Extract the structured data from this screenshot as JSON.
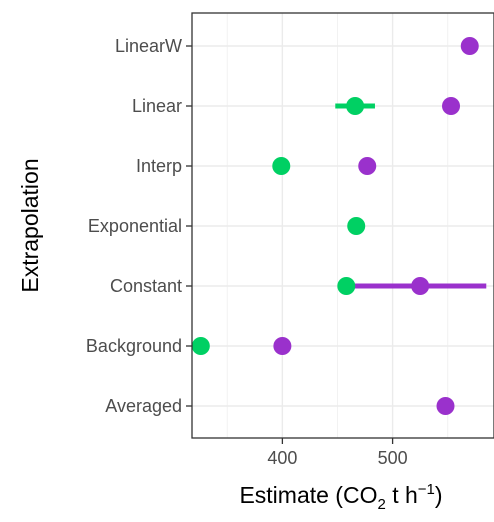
{
  "chart_data": {
    "type": "scatter",
    "orientation": "horizontal",
    "categories": [
      "Averaged",
      "Background",
      "Constant",
      "Exponential",
      "Interp",
      "Linear",
      "LinearW"
    ],
    "xticks": [
      400,
      500
    ],
    "xlim": [
      318,
      592
    ],
    "ylabel": "Extrapolation",
    "xlabel": {
      "prefix": "Estimate (CO",
      "sub": "2",
      "middle": " t h",
      "sup": "−1",
      "suffix": ")"
    },
    "grid": true,
    "legend": "none",
    "series": [
      {
        "color": "#00d063",
        "points": [
          {
            "category": "Averaged",
            "x": null
          },
          {
            "category": "Background",
            "x": 326
          },
          {
            "category": "Constant",
            "x": 458
          },
          {
            "category": "Exponential",
            "x": 467
          },
          {
            "category": "Interp",
            "x": 399
          },
          {
            "category": "Linear",
            "x": 466,
            "xmin": 448,
            "xmax": 484
          },
          {
            "category": "LinearW",
            "x": null
          }
        ]
      },
      {
        "color": "#9a31cc",
        "points": [
          {
            "category": "Averaged",
            "x": 548
          },
          {
            "category": "Background",
            "x": 400
          },
          {
            "category": "Constant",
            "x": 525,
            "xmin": 460,
            "xmax": 585
          },
          {
            "category": "Exponential",
            "x": null
          },
          {
            "category": "Interp",
            "x": 477
          },
          {
            "category": "Linear",
            "x": 553
          },
          {
            "category": "LinearW",
            "x": 570
          }
        ]
      }
    ]
  }
}
